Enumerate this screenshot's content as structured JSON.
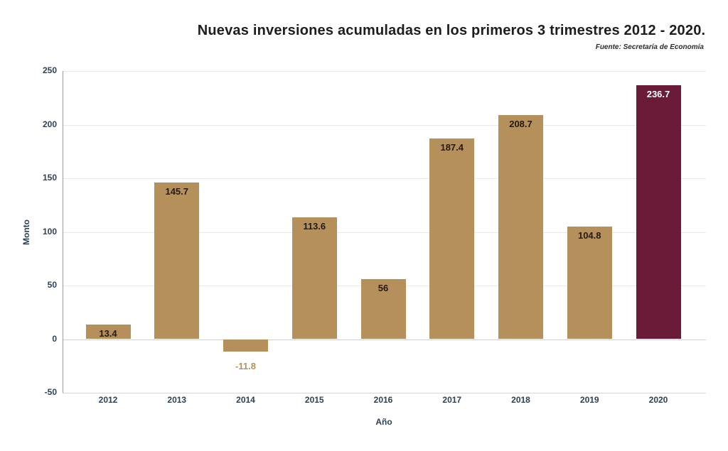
{
  "title": "Nuevas inversiones acumuladas en los primeros 3 trimestres 2012 - 2020.",
  "source": "Fuente: Secretaría de Economía",
  "chart_data": {
    "type": "bar",
    "title": "Nuevas inversiones acumuladas en los primeros 3 trimestres 2012 - 2020.",
    "subtitle": "Fuente: Secretaría de Economía",
    "categories": [
      "2012",
      "2013",
      "2014",
      "2015",
      "2016",
      "2017",
      "2018",
      "2019",
      "2020"
    ],
    "values": [
      13.4,
      145.7,
      -11.8,
      113.6,
      56,
      187.4,
      208.7,
      104.8,
      236.7
    ],
    "value_labels": [
      "13.4",
      "145.7",
      "-11.8",
      "113.6",
      "56",
      "187.4",
      "208.7",
      "104.8",
      "236.7"
    ],
    "xlabel": "Año",
    "ylabel": "Monto",
    "ylim": [
      -50,
      250
    ],
    "yticks": [
      250,
      200,
      150,
      100,
      50,
      0,
      -50
    ],
    "grid": true,
    "legend": false,
    "highlight_index": 8
  },
  "colors": {
    "bar": "#b5905a",
    "bar_highlight": "#6a1b38",
    "label_inside": "#241b0e",
    "label_negative": "#b5905a",
    "label_highlight": "#ffffff",
    "axis_text": "#2e4155",
    "gridline": "#e9e9e9"
  }
}
